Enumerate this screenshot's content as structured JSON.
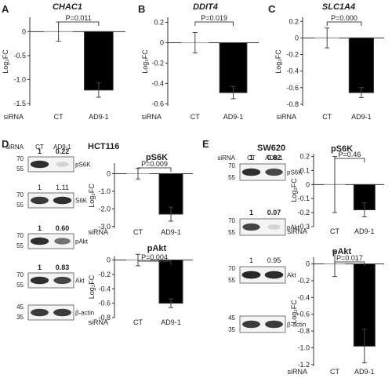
{
  "chart_data": [
    {
      "type": "bar",
      "panel": "A",
      "title": "CHAC1",
      "ylabel": "Log₂FC",
      "row_label": "siRNA",
      "categories": [
        "CT",
        "AD9-1"
      ],
      "values": [
        0,
        -1.22
      ],
      "errors": [
        0.2,
        0.15
      ],
      "yticks": [
        0,
        -0.5,
        -1.0,
        -1.5
      ],
      "yticklabels": [
        "0",
        "-0.5",
        "-1.0",
        "-1.5"
      ],
      "ylim": [
        -1.55,
        0.3
      ],
      "pvalue": "P=0.011",
      "bar_colors": [
        "#ffffff",
        "#000000"
      ]
    },
    {
      "type": "bar",
      "panel": "B",
      "title": "DDIT4",
      "ylabel": "Log₂FC",
      "row_label": "siRNA",
      "categories": [
        "CT",
        "AD9-1"
      ],
      "values": [
        0,
        -0.49
      ],
      "errors": [
        0.1,
        0.06
      ],
      "yticks": [
        0.2,
        0,
        -0.2,
        -0.4,
        -0.6
      ],
      "yticklabels": [
        "0.2",
        "0",
        "-0.2",
        "-0.4",
        "-0.6"
      ],
      "ylim": [
        -0.62,
        0.25
      ],
      "pvalue": "P=0.019",
      "bar_colors": [
        "#ffffff",
        "#000000"
      ]
    },
    {
      "type": "bar",
      "panel": "C",
      "title": "SLC1A4",
      "ylabel": "Log₂FC",
      "row_label": "siRNA",
      "categories": [
        "CT",
        "AD9-1"
      ],
      "values": [
        0,
        -0.66
      ],
      "errors": [
        0.12,
        0.06
      ],
      "yticks": [
        0.2,
        0,
        -0.2,
        -0.4,
        -0.6,
        -0.8
      ],
      "yticklabels": [
        "0.2",
        "0",
        "-0.2",
        "-0.4",
        "-0.6",
        "-0.8"
      ],
      "ylim": [
        -0.82,
        0.25
      ],
      "pvalue": "P=0.000",
      "bar_colors": [
        "#ffffff",
        "#000000"
      ]
    },
    {
      "type": "bar",
      "panel": "D",
      "cell_line": "HCT116",
      "title": "pS6K",
      "ylabel": "Log₂FC",
      "row_label": "siRNA",
      "categories": [
        "CT",
        "AD9-1"
      ],
      "values": [
        0,
        -2.3
      ],
      "errors": [
        0.3,
        0.4
      ],
      "yticks": [
        0,
        -1.0,
        -2.0,
        -3.0
      ],
      "yticklabels": [
        "0",
        "-1.0",
        "-2.0",
        "-3.0"
      ],
      "ylim": [
        -3.1,
        0.6
      ],
      "pvalue": "P=0.009",
      "bar_colors": [
        "#ffffff",
        "#000000"
      ]
    },
    {
      "type": "bar",
      "panel": "D",
      "cell_line": "HCT116",
      "title": "pAkt",
      "ylabel": "Log₂FC",
      "row_label": "siRNA",
      "categories": [
        "CT",
        "AD9-1"
      ],
      "values": [
        0,
        -0.6
      ],
      "errors": [
        0.08,
        0.06
      ],
      "yticks": [
        0,
        -0.2,
        -0.4,
        -0.6,
        -0.8
      ],
      "yticklabels": [
        "0",
        "-0.2",
        "-0.4",
        "-0.6",
        "-0.8"
      ],
      "ylim": [
        -0.8,
        0.05
      ],
      "pvalue": "P=0.004",
      "bar_colors": [
        "#ffffff",
        "#000000"
      ]
    },
    {
      "type": "bar",
      "panel": "E",
      "cell_line": "SW620",
      "title": "pS6K",
      "ylabel": "Log₂FC",
      "row_label": "siRNA",
      "categories": [
        "CT",
        "AD9-1"
      ],
      "values": [
        0,
        -0.18
      ],
      "errors": [
        0.2,
        0.05
      ],
      "yticks": [
        0.2,
        0.1,
        0,
        -0.1,
        -0.2,
        -0.3
      ],
      "yticklabels": [
        "0.2",
        "0.1",
        "0",
        "-0.1",
        "-0.2",
        "-0.3"
      ],
      "ylim": [
        -0.3,
        0.22
      ],
      "pvalue": "P=0.46",
      "bar_colors": [
        "#ffffff",
        "#000000"
      ]
    },
    {
      "type": "bar",
      "panel": "E",
      "cell_line": "SW620",
      "title": "pAkt",
      "ylabel": "Log₂FC",
      "row_label": "siRNA",
      "categories": [
        "CT",
        "AD9-1"
      ],
      "values": [
        0,
        -0.98
      ],
      "errors": [
        0.15,
        0.2
      ],
      "yticks": [
        0,
        -0.2,
        -0.4,
        -0.6,
        -0.8,
        -1.0,
        -1.2
      ],
      "yticklabels": [
        "0",
        "-0.2",
        "-0.4",
        "-0.6",
        "-0.8",
        "-1.0",
        "-1.2"
      ],
      "ylim": [
        -1.22,
        0.08
      ],
      "pvalue": "P=0.017",
      "bar_colors": [
        "#ffffff",
        "#000000"
      ]
    }
  ],
  "panel_labels": {
    "A": "A",
    "B": "B",
    "C": "C",
    "D": "D",
    "E": "E"
  },
  "western_blots": {
    "D": {
      "cell_line": "HCT116",
      "row_label": "siRNA",
      "lanes": [
        "CT",
        "AD9-1"
      ],
      "blots": [
        {
          "label": "pS6K",
          "ratios": [
            "1",
            "0.22"
          ],
          "ratio_bold": true,
          "mw": [
            "70",
            "55"
          ],
          "bands": [
            0.9,
            0.12
          ]
        },
        {
          "label": "S6K",
          "ratios": [
            "1",
            "1.11"
          ],
          "ratio_bold": false,
          "mw": [
            "70",
            "55"
          ],
          "bands": [
            0.85,
            0.9
          ]
        },
        {
          "label": "pAkt",
          "ratios": [
            "1",
            "0.60"
          ],
          "ratio_bold": true,
          "mw": [
            "70",
            "55"
          ],
          "bands": [
            0.9,
            0.6
          ]
        },
        {
          "label": "Akt",
          "ratios": [
            "1",
            "0.83"
          ],
          "ratio_bold": true,
          "mw": [
            "70",
            "55"
          ],
          "bands": [
            0.9,
            0.8
          ]
        },
        {
          "label": "β-actin",
          "ratios": [
            "",
            ""
          ],
          "ratio_bold": false,
          "mw": [
            "45",
            "35"
          ],
          "bands": [
            0.85,
            0.85
          ]
        }
      ]
    },
    "E": {
      "cell_line": "SW620",
      "row_label": "siRNA",
      "lanes": [
        "CT",
        "AD9-1"
      ],
      "blots": [
        {
          "label": "pS6K",
          "ratios": [
            "1",
            "0.82"
          ],
          "ratio_bold": true,
          "mw": [
            "70",
            "55"
          ],
          "bands": [
            0.9,
            0.8
          ]
        },
        {
          "label": "pAkt",
          "ratios": [
            "1",
            "0.07"
          ],
          "ratio_bold": true,
          "mw": [
            "70",
            "55"
          ],
          "bands": [
            0.8,
            0.15
          ]
        },
        {
          "label": "Akt",
          "ratios": [
            "1",
            "0.95"
          ],
          "ratio_bold": false,
          "mw": [
            "70",
            "55"
          ],
          "bands": [
            0.95,
            0.92
          ]
        },
        {
          "label": "β-actin",
          "ratios": [
            "",
            ""
          ],
          "ratio_bold": false,
          "mw": [
            "45",
            "35"
          ],
          "bands": [
            0.85,
            0.85
          ]
        }
      ]
    }
  },
  "colors": {
    "ink": "#222222",
    "bar_treated": "#000000",
    "bar_control": "#ffffff",
    "band": "#1a1a1a",
    "membrane": "#f4f4f4"
  }
}
